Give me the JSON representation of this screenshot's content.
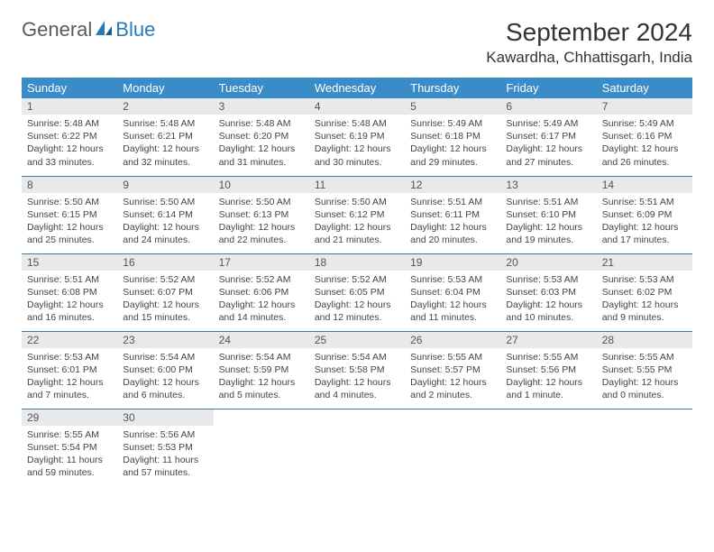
{
  "brand": {
    "part1": "General",
    "part2": "Blue",
    "text_color": "#5a5a5a",
    "accent_color": "#2a7ab8"
  },
  "title": "September 2024",
  "location": "Kawardha, Chhattisgarh, India",
  "colors": {
    "header_bg": "#3a8cc9",
    "daynum_bg": "#e7e9ea",
    "row_border": "#3a7aa8"
  },
  "weekdays": [
    "Sunday",
    "Monday",
    "Tuesday",
    "Wednesday",
    "Thursday",
    "Friday",
    "Saturday"
  ],
  "days": [
    {
      "n": 1,
      "sr": "5:48 AM",
      "ss": "6:22 PM",
      "dl": "12 hours and 33 minutes."
    },
    {
      "n": 2,
      "sr": "5:48 AM",
      "ss": "6:21 PM",
      "dl": "12 hours and 32 minutes."
    },
    {
      "n": 3,
      "sr": "5:48 AM",
      "ss": "6:20 PM",
      "dl": "12 hours and 31 minutes."
    },
    {
      "n": 4,
      "sr": "5:48 AM",
      "ss": "6:19 PM",
      "dl": "12 hours and 30 minutes."
    },
    {
      "n": 5,
      "sr": "5:49 AM",
      "ss": "6:18 PM",
      "dl": "12 hours and 29 minutes."
    },
    {
      "n": 6,
      "sr": "5:49 AM",
      "ss": "6:17 PM",
      "dl": "12 hours and 27 minutes."
    },
    {
      "n": 7,
      "sr": "5:49 AM",
      "ss": "6:16 PM",
      "dl": "12 hours and 26 minutes."
    },
    {
      "n": 8,
      "sr": "5:50 AM",
      "ss": "6:15 PM",
      "dl": "12 hours and 25 minutes."
    },
    {
      "n": 9,
      "sr": "5:50 AM",
      "ss": "6:14 PM",
      "dl": "12 hours and 24 minutes."
    },
    {
      "n": 10,
      "sr": "5:50 AM",
      "ss": "6:13 PM",
      "dl": "12 hours and 22 minutes."
    },
    {
      "n": 11,
      "sr": "5:50 AM",
      "ss": "6:12 PM",
      "dl": "12 hours and 21 minutes."
    },
    {
      "n": 12,
      "sr": "5:51 AM",
      "ss": "6:11 PM",
      "dl": "12 hours and 20 minutes."
    },
    {
      "n": 13,
      "sr": "5:51 AM",
      "ss": "6:10 PM",
      "dl": "12 hours and 19 minutes."
    },
    {
      "n": 14,
      "sr": "5:51 AM",
      "ss": "6:09 PM",
      "dl": "12 hours and 17 minutes."
    },
    {
      "n": 15,
      "sr": "5:51 AM",
      "ss": "6:08 PM",
      "dl": "12 hours and 16 minutes."
    },
    {
      "n": 16,
      "sr": "5:52 AM",
      "ss": "6:07 PM",
      "dl": "12 hours and 15 minutes."
    },
    {
      "n": 17,
      "sr": "5:52 AM",
      "ss": "6:06 PM",
      "dl": "12 hours and 14 minutes."
    },
    {
      "n": 18,
      "sr": "5:52 AM",
      "ss": "6:05 PM",
      "dl": "12 hours and 12 minutes."
    },
    {
      "n": 19,
      "sr": "5:53 AM",
      "ss": "6:04 PM",
      "dl": "12 hours and 11 minutes."
    },
    {
      "n": 20,
      "sr": "5:53 AM",
      "ss": "6:03 PM",
      "dl": "12 hours and 10 minutes."
    },
    {
      "n": 21,
      "sr": "5:53 AM",
      "ss": "6:02 PM",
      "dl": "12 hours and 9 minutes."
    },
    {
      "n": 22,
      "sr": "5:53 AM",
      "ss": "6:01 PM",
      "dl": "12 hours and 7 minutes."
    },
    {
      "n": 23,
      "sr": "5:54 AM",
      "ss": "6:00 PM",
      "dl": "12 hours and 6 minutes."
    },
    {
      "n": 24,
      "sr": "5:54 AM",
      "ss": "5:59 PM",
      "dl": "12 hours and 5 minutes."
    },
    {
      "n": 25,
      "sr": "5:54 AM",
      "ss": "5:58 PM",
      "dl": "12 hours and 4 minutes."
    },
    {
      "n": 26,
      "sr": "5:55 AM",
      "ss": "5:57 PM",
      "dl": "12 hours and 2 minutes."
    },
    {
      "n": 27,
      "sr": "5:55 AM",
      "ss": "5:56 PM",
      "dl": "12 hours and 1 minute."
    },
    {
      "n": 28,
      "sr": "5:55 AM",
      "ss": "5:55 PM",
      "dl": "12 hours and 0 minutes."
    },
    {
      "n": 29,
      "sr": "5:55 AM",
      "ss": "5:54 PM",
      "dl": "11 hours and 59 minutes."
    },
    {
      "n": 30,
      "sr": "5:56 AM",
      "ss": "5:53 PM",
      "dl": "11 hours and 57 minutes."
    }
  ],
  "labels": {
    "sunrise": "Sunrise:",
    "sunset": "Sunset:",
    "daylight": "Daylight:"
  }
}
